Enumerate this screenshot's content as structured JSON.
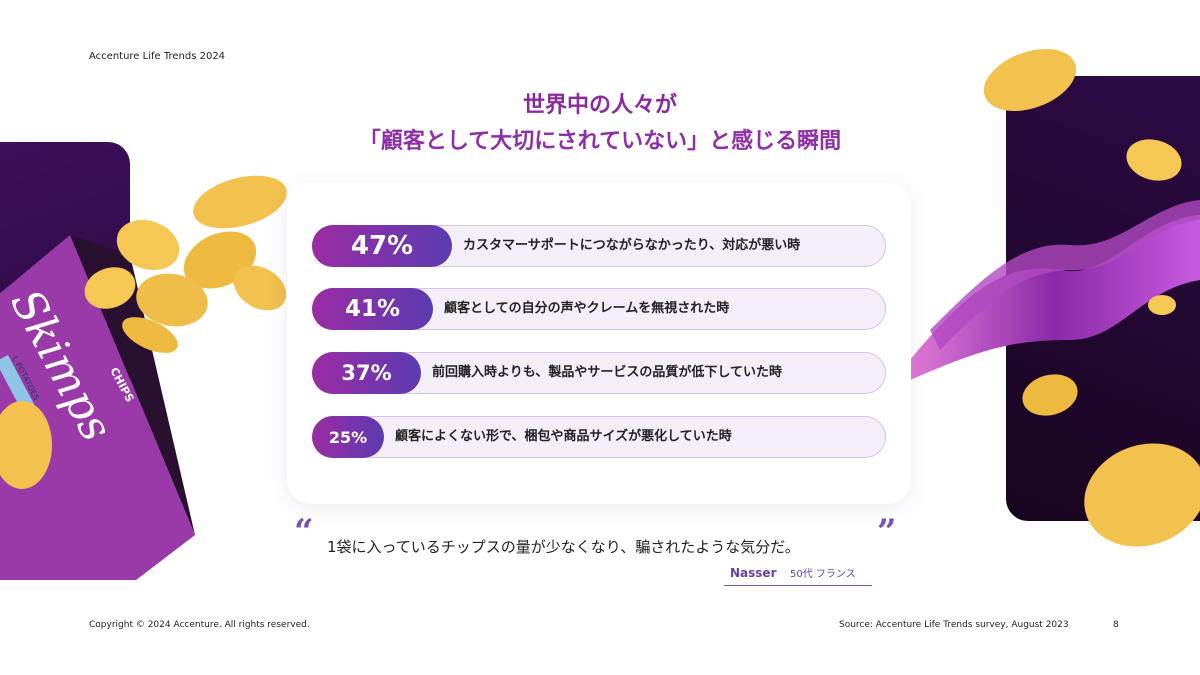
{
  "header": {
    "brand": "Accenture Life Trends 2024"
  },
  "title": {
    "line1": "世界中の人々が",
    "line2": "「顧客として大切にされていない」と感じる瞬間"
  },
  "chart_data": {
    "type": "bar",
    "unit": "%",
    "categories": [
      "カスタマーサポートにつながらなかったり、対応が悪い時",
      "顧客としての自分の声やクレームを無視された時",
      "前回購入時よりも、製品やサービスの品質が低下していた時",
      "顧客によくない形で、梱包や商品サイズが悪化していた時"
    ],
    "values": [
      47,
      41,
      37,
      25
    ],
    "value_labels": [
      "47%",
      "41%",
      "37%",
      "25%"
    ],
    "title": "",
    "xlabel": "",
    "ylabel": ""
  },
  "quote": {
    "open_mark": "“",
    "close_mark": "”",
    "text": "1袋に入っているチップスの量が少なくなり、騙されたような気分だ。",
    "name": "Nasser",
    "detail": "50代 フランス"
  },
  "product": {
    "brand": "Skimps",
    "label": "CHIPS",
    "variant": "L POTATOES"
  },
  "footer": {
    "copyright": "Copyright © 2024 Accenture. All rights reserved.",
    "source": "Source: Accenture Life Trends survey, August 2023",
    "page": "8"
  },
  "colors": {
    "accent": "#8a2a9d",
    "pill_start": "#9b2ca5",
    "pill_end": "#5c3bb0",
    "panel": "#2a0a40",
    "chip": "#f2c14e"
  }
}
